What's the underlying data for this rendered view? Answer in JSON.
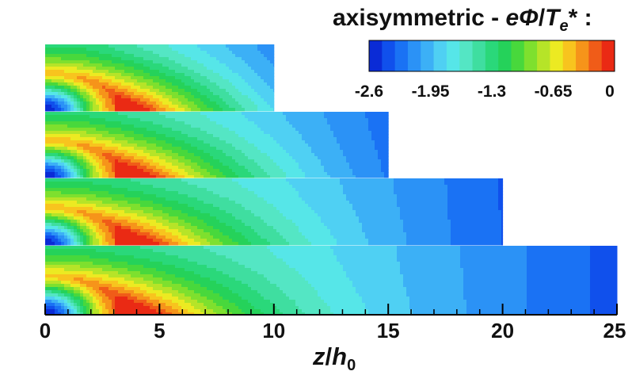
{
  "chart_data": {
    "type": "heatmap",
    "title_parts": {
      "prefix": "axisymmetric - ",
      "e": "e",
      "phi": "Φ",
      "slash": "/",
      "T": "T",
      "sub_e": "e",
      "suffix": "* :"
    },
    "xlabel": {
      "z": "z",
      "slash": "/",
      "h": "h",
      "sub": "0"
    },
    "x_ticks": [
      "0",
      "5",
      "10",
      "15",
      "20",
      "25"
    ],
    "xlim": [
      0,
      25
    ],
    "colorbar": {
      "ticks": [
        "-2.6",
        "-1.95",
        "-1.3",
        "-0.65",
        "0"
      ],
      "tick_values": [
        -2.6,
        -1.95,
        -1.3,
        -0.65,
        0
      ],
      "range": [
        -2.6,
        0
      ],
      "levels": 18,
      "colors": [
        "#0a2bd6",
        "#1050ec",
        "#1a72f4",
        "#2b92f6",
        "#3cb0f6",
        "#4fd0f3",
        "#56e6e8",
        "#54e6c4",
        "#3fdea0",
        "#2ad87a",
        "#25d25a",
        "#48d83c",
        "#7ee02e",
        "#b6e428",
        "#ecea22",
        "#f8c41e",
        "#f6941a",
        "#f05c18",
        "#ea2a14"
      ]
    },
    "panels": [
      {
        "z_max": 10
      },
      {
        "z_max": 15
      },
      {
        "z_max": 20
      },
      {
        "z_max": 25
      }
    ]
  }
}
